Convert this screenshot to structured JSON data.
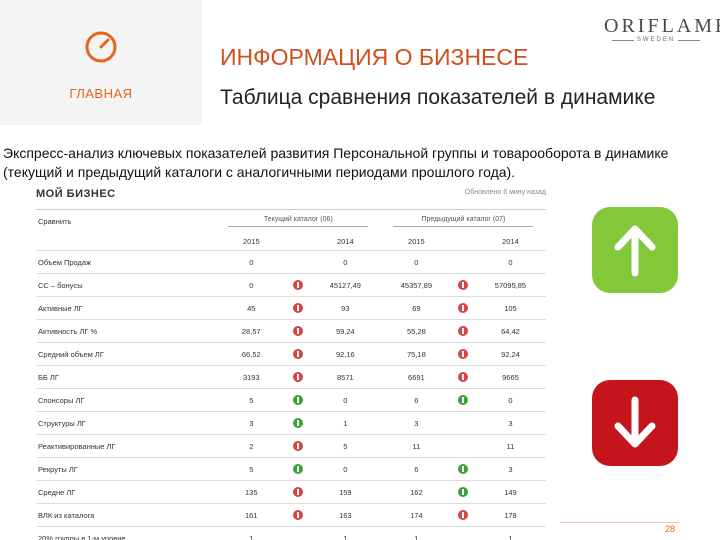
{
  "sidebar": {
    "home_label": "ГЛАВНАЯ",
    "icon": "gauge-icon"
  },
  "logo": {
    "main": "ORIFLAME",
    "sub": "SWEDEN"
  },
  "title": "ИНФОРМАЦИЯ О БИЗНЕСЕ",
  "subtitle": "Таблица сравнения показателей в динамике",
  "description": "Экспресс-анализ ключевых показателей развития Персональной группы и товарооборота в динамике (текущий и предыдущий каталоги с аналогичными периодами прошлого года).",
  "panel": {
    "title": "МОЙ БИЗНЕС",
    "meta": "Обновлено 6 мину назад",
    "col_compare": "Сравнить",
    "group_current": "Текущий каталог (06)",
    "group_previous": "Предыдущий каталог (07)",
    "years": [
      "2015",
      "2014",
      "2015",
      "2014"
    ],
    "rows": [
      {
        "label": "Объем Продаж",
        "v": [
          "0",
          "0",
          "0",
          "0"
        ],
        "i": [
          "",
          ""
        ]
      },
      {
        "label": "СС – бонусы",
        "v": [
          "0",
          "45127,49",
          "45357,89",
          "57095,85"
        ],
        "i": [
          "down",
          "down"
        ]
      },
      {
        "label": "Активные ЛГ",
        "v": [
          "45",
          "93",
          "69",
          "105"
        ],
        "i": [
          "down",
          "down"
        ]
      },
      {
        "label": "Активность ЛГ %",
        "v": [
          "28,57",
          "59,24",
          "55,28",
          "64,42"
        ],
        "i": [
          "down",
          "down"
        ]
      },
      {
        "label": "Средний объем ЛГ",
        "v": [
          "66,52",
          "92,16",
          "75,18",
          "92,24"
        ],
        "i": [
          "down",
          "down"
        ]
      },
      {
        "label": "ББ ЛГ",
        "v": [
          "3193",
          "8571",
          "6691",
          "9665"
        ],
        "i": [
          "down",
          "down"
        ]
      },
      {
        "label": "Спонсоры ЛГ",
        "v": [
          "5",
          "0",
          "6",
          "0"
        ],
        "i": [
          "up",
          "up"
        ]
      },
      {
        "label": "Структуры ЛГ",
        "v": [
          "3",
          "1",
          "3",
          "3"
        ],
        "i": [
          "up",
          ""
        ]
      },
      {
        "label": "Реактивированные ЛГ",
        "v": [
          "2",
          "5",
          "11",
          "11"
        ],
        "i": [
          "down",
          ""
        ]
      },
      {
        "label": "Рекруты ЛГ",
        "v": [
          "5",
          "0",
          "6",
          "3"
        ],
        "i": [
          "up",
          "up"
        ]
      },
      {
        "label": "Средне ЛГ",
        "v": [
          "135",
          "159",
          "162",
          "149"
        ],
        "i": [
          "down",
          "up"
        ]
      },
      {
        "label": "ВЛК из каталога",
        "v": [
          "161",
          "163",
          "174",
          "178"
        ],
        "i": [
          "down",
          "down"
        ]
      },
      {
        "label": "20% группы в 1-м уровне",
        "v": [
          "1",
          "1",
          "1",
          "1"
        ],
        "i": [
          "",
          ""
        ]
      }
    ]
  },
  "page_number": "28",
  "colors": {
    "accent": "#e8641c",
    "up": "#83c83a",
    "down": "#c4141c"
  }
}
